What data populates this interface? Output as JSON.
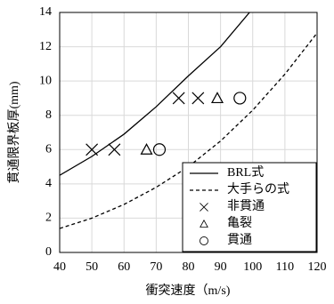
{
  "chart_data": {
    "type": "scatter",
    "xlabel": "衝突速度（m/s)",
    "ylabel": "貫通限界板厚(mm)",
    "xlim": [
      40,
      120
    ],
    "xticks": [
      40,
      50,
      60,
      70,
      80,
      90,
      100,
      110,
      120
    ],
    "ylim": [
      0,
      14
    ],
    "yticks": [
      0,
      2,
      4,
      6,
      8,
      10,
      12,
      14
    ],
    "grid": true,
    "legend": "lower right",
    "series": [
      {
        "name": "BRL式",
        "color": "#000000",
        "marker": "solid",
        "x": [
          40,
          50,
          60,
          70,
          80,
          90,
          99
        ],
        "values": [
          4.5,
          5.6,
          6.9,
          8.5,
          10.3,
          12.0,
          14
        ]
      },
      {
        "name": "大手らの式",
        "color": "#000000",
        "marker": "dashed",
        "x": [
          40,
          50,
          60,
          70,
          80,
          90,
          100,
          110,
          120
        ],
        "values": [
          1.4,
          2.0,
          2.8,
          3.8,
          5.0,
          6.5,
          8.3,
          10.4,
          12.8
        ]
      },
      {
        "name": "非貫通",
        "color": "#000000",
        "marker": "x",
        "x": [
          50,
          57,
          77,
          83
        ],
        "values": [
          6,
          6,
          9,
          9
        ]
      },
      {
        "name": "亀裂",
        "color": "#000000",
        "marker": "triangle",
        "x": [
          67,
          89
        ],
        "values": [
          6,
          9
        ]
      },
      {
        "name": "貫通",
        "color": "#000000",
        "marker": "circle",
        "x": [
          71,
          96
        ],
        "values": [
          6,
          9
        ]
      }
    ]
  }
}
